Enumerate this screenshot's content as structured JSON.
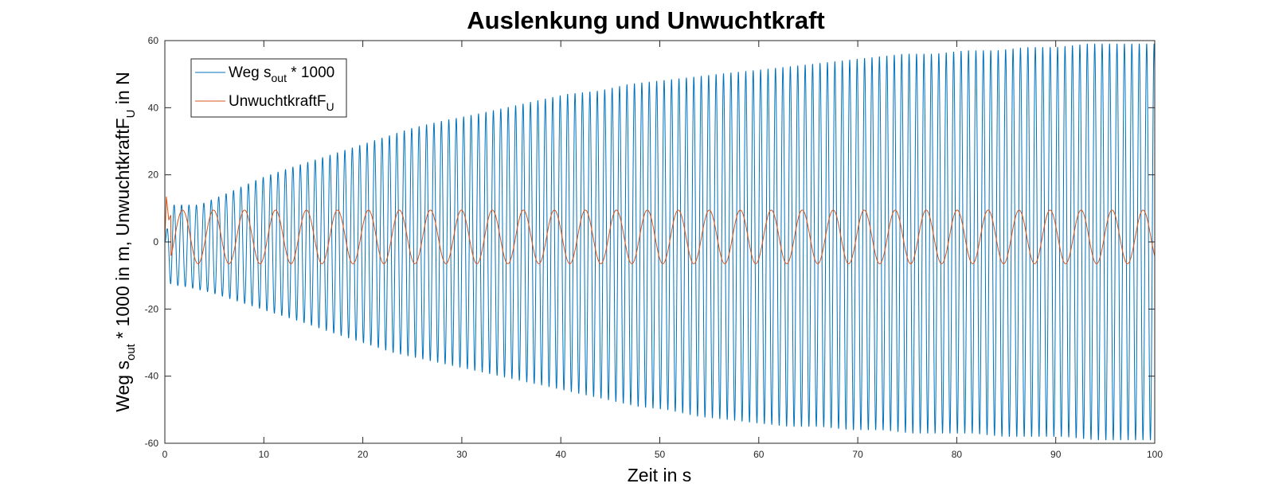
{
  "chart_data": {
    "type": "line",
    "title": "Auslenkung und Unwuchtkraft",
    "xlabel": "Zeit in s",
    "ylabel": {
      "prefix": "Weg s",
      "prefix_sub": "out",
      "middle": " * 1000 in m, UnwuchtkraftF",
      "middle_sub": "U",
      "suffix": " in N"
    },
    "xlim": [
      0,
      100
    ],
    "ylim": [
      -60,
      60
    ],
    "xticks": [
      0,
      10,
      20,
      30,
      40,
      50,
      60,
      70,
      80,
      90,
      100
    ],
    "yticks": [
      -60,
      -40,
      -20,
      0,
      20,
      40,
      60
    ],
    "grid": false,
    "legend_position": "top-left",
    "series": [
      {
        "name": "Weg s",
        "name_sub": "out",
        "name_suffix": " * 1000",
        "color": "#0072BD",
        "peak_times_s": [
          3.5,
          6.7,
          9.7,
          12.6,
          15.8,
          18.9,
          22.0,
          25.1,
          28.0,
          31.4,
          34.5,
          37.5,
          40.6,
          43.9,
          46.9,
          50.0,
          53.0,
          56.0,
          59.2,
          62.4,
          65.5,
          68.5,
          71.6,
          74.7,
          77.8,
          80.9,
          84.0,
          87.0,
          90.1,
          93.2,
          96.2,
          98.2
        ],
        "peak_values": [
          11,
          15,
          19,
          22,
          25,
          28,
          31,
          34,
          36,
          38,
          40,
          42,
          44,
          45,
          47,
          48,
          49,
          50,
          51,
          52,
          53,
          54,
          55,
          56,
          56,
          57,
          57,
          58,
          58,
          59,
          59,
          59
        ],
        "trough_times_s": [
          1.6,
          4.6,
          7.7,
          10.8,
          14.0,
          16.9,
          20.0,
          23.1,
          26.2,
          29.3,
          32.4,
          35.4,
          38.6,
          41.6,
          44.7,
          47.7,
          50.8,
          53.9,
          57.0,
          60.0,
          63.1,
          66.2,
          69.3,
          72.4,
          75.5,
          78.5,
          81.6,
          84.7,
          87.8,
          90.9,
          93.9,
          97.0,
          99.5
        ],
        "trough_values": [
          -13,
          -15,
          -18,
          -21,
          -24,
          -27,
          -30,
          -33,
          -35,
          -37,
          -39,
          -41,
          -43,
          -45,
          -47,
          -49,
          -50,
          -52,
          -53,
          -54,
          -55,
          -55,
          -56,
          -56,
          -57,
          -57,
          -57,
          -58,
          -58,
          -58,
          -59,
          -59,
          -59
        ],
        "oscillation_period_s": 0.75
      },
      {
        "name": "UnwuchtkraftF",
        "name_sub": "U",
        "name_suffix": "",
        "color": "#D95319",
        "initial_values": [
          [
            0,
            0
          ],
          [
            0.15,
            13.5
          ],
          [
            0.4,
            6.5
          ],
          [
            0.6,
            8
          ]
        ],
        "amplitude_high": 9.5,
        "amplitude_low": -6.5,
        "period_s": 3.13
      }
    ]
  }
}
